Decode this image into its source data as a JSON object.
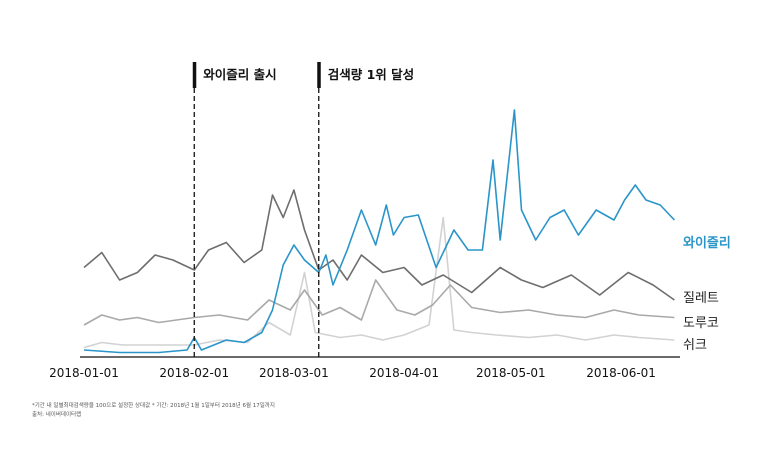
{
  "chart_data": {
    "type": "line",
    "x_axis": {
      "type": "date",
      "range": [
        "2018-01-01",
        "2018-06-17"
      ],
      "ticks": [
        "2018-01-01",
        "2018-02-01",
        "2018-03-01",
        "2018-04-01",
        "2018-05-01",
        "2018-06-01"
      ]
    },
    "y_axis": {
      "range": [
        0,
        100
      ],
      "visible": false
    },
    "grid": false,
    "annotations": [
      {
        "date": "2018-02-01",
        "label": "와이즐리 출시"
      },
      {
        "date": "2018-03-08",
        "label": "검색량 1위 달성"
      }
    ],
    "series": [
      {
        "name": "와이즐리",
        "color": "#2a95c9",
        "points": [
          [
            "2018-01-01",
            2
          ],
          [
            "2018-01-11",
            1
          ],
          [
            "2018-01-22",
            1
          ],
          [
            "2018-01-30",
            2
          ],
          [
            "2018-02-01",
            7
          ],
          [
            "2018-02-03",
            2
          ],
          [
            "2018-02-10",
            6
          ],
          [
            "2018-02-15",
            5
          ],
          [
            "2018-02-20",
            9
          ],
          [
            "2018-02-23",
            18
          ],
          [
            "2018-02-26",
            36
          ],
          [
            "2018-03-01",
            44
          ],
          [
            "2018-03-04",
            38
          ],
          [
            "2018-03-08",
            33
          ],
          [
            "2018-03-10",
            40
          ],
          [
            "2018-03-12",
            28
          ],
          [
            "2018-03-16",
            42
          ],
          [
            "2018-03-20",
            58
          ],
          [
            "2018-03-24",
            44
          ],
          [
            "2018-03-27",
            60
          ],
          [
            "2018-03-29",
            48
          ],
          [
            "2018-04-01",
            55
          ],
          [
            "2018-04-05",
            56
          ],
          [
            "2018-04-10",
            35
          ],
          [
            "2018-04-15",
            50
          ],
          [
            "2018-04-19",
            42
          ],
          [
            "2018-04-23",
            42
          ],
          [
            "2018-04-26",
            78
          ],
          [
            "2018-04-28",
            46
          ],
          [
            "2018-05-02",
            98
          ],
          [
            "2018-05-04",
            58
          ],
          [
            "2018-05-08",
            46
          ],
          [
            "2018-05-12",
            55
          ],
          [
            "2018-05-16",
            58
          ],
          [
            "2018-05-20",
            48
          ],
          [
            "2018-05-25",
            58
          ],
          [
            "2018-05-30",
            54
          ],
          [
            "2018-06-02",
            62
          ],
          [
            "2018-06-05",
            68
          ],
          [
            "2018-06-08",
            62
          ],
          [
            "2018-06-12",
            60
          ],
          [
            "2018-06-16",
            54
          ]
        ]
      },
      {
        "name": "질레트",
        "color": "#6e6e6e",
        "points": [
          [
            "2018-01-01",
            35
          ],
          [
            "2018-01-06",
            41
          ],
          [
            "2018-01-11",
            30
          ],
          [
            "2018-01-16",
            33
          ],
          [
            "2018-01-21",
            40
          ],
          [
            "2018-01-26",
            38
          ],
          [
            "2018-02-01",
            34
          ],
          [
            "2018-02-05",
            42
          ],
          [
            "2018-02-10",
            45
          ],
          [
            "2018-02-15",
            37
          ],
          [
            "2018-02-20",
            42
          ],
          [
            "2018-02-23",
            64
          ],
          [
            "2018-02-26",
            55
          ],
          [
            "2018-03-01",
            66
          ],
          [
            "2018-03-04",
            50
          ],
          [
            "2018-03-08",
            34
          ],
          [
            "2018-03-12",
            38
          ],
          [
            "2018-03-16",
            30
          ],
          [
            "2018-03-20",
            40
          ],
          [
            "2018-03-26",
            33
          ],
          [
            "2018-04-01",
            35
          ],
          [
            "2018-04-06",
            28
          ],
          [
            "2018-04-12",
            32
          ],
          [
            "2018-04-20",
            25
          ],
          [
            "2018-04-28",
            35
          ],
          [
            "2018-05-04",
            30
          ],
          [
            "2018-05-10",
            27
          ],
          [
            "2018-05-18",
            32
          ],
          [
            "2018-05-26",
            24
          ],
          [
            "2018-06-03",
            33
          ],
          [
            "2018-06-10",
            28
          ],
          [
            "2018-06-16",
            22
          ]
        ]
      },
      {
        "name": "도루코",
        "color": "#a9a9a9",
        "points": [
          [
            "2018-01-01",
            12
          ],
          [
            "2018-01-06",
            16
          ],
          [
            "2018-01-11",
            14
          ],
          [
            "2018-01-16",
            15
          ],
          [
            "2018-01-22",
            13
          ],
          [
            "2018-02-01",
            15
          ],
          [
            "2018-02-08",
            16
          ],
          [
            "2018-02-16",
            14
          ],
          [
            "2018-02-22",
            22
          ],
          [
            "2018-02-28",
            18
          ],
          [
            "2018-03-04",
            26
          ],
          [
            "2018-03-09",
            16
          ],
          [
            "2018-03-14",
            19
          ],
          [
            "2018-03-20",
            14
          ],
          [
            "2018-03-24",
            30
          ],
          [
            "2018-03-30",
            18
          ],
          [
            "2018-04-04",
            16
          ],
          [
            "2018-04-09",
            20
          ],
          [
            "2018-04-14",
            28
          ],
          [
            "2018-04-20",
            19
          ],
          [
            "2018-04-28",
            17
          ],
          [
            "2018-05-06",
            18
          ],
          [
            "2018-05-14",
            16
          ],
          [
            "2018-05-22",
            15
          ],
          [
            "2018-05-30",
            18
          ],
          [
            "2018-06-06",
            16
          ],
          [
            "2018-06-16",
            15
          ]
        ]
      },
      {
        "name": "쉬크",
        "color": "#d2d2d2",
        "points": [
          [
            "2018-01-01",
            3
          ],
          [
            "2018-01-06",
            5
          ],
          [
            "2018-01-12",
            4
          ],
          [
            "2018-01-20",
            4
          ],
          [
            "2018-02-01",
            4
          ],
          [
            "2018-02-08",
            6
          ],
          [
            "2018-02-16",
            5
          ],
          [
            "2018-02-22",
            13
          ],
          [
            "2018-02-28",
            8
          ],
          [
            "2018-03-04",
            33
          ],
          [
            "2018-03-07",
            9
          ],
          [
            "2018-03-14",
            7
          ],
          [
            "2018-03-20",
            8
          ],
          [
            "2018-03-26",
            6
          ],
          [
            "2018-04-01",
            8
          ],
          [
            "2018-04-08",
            12
          ],
          [
            "2018-04-12",
            55
          ],
          [
            "2018-04-15",
            10
          ],
          [
            "2018-04-20",
            9
          ],
          [
            "2018-04-27",
            8
          ],
          [
            "2018-05-06",
            7
          ],
          [
            "2018-05-14",
            8
          ],
          [
            "2018-05-22",
            6
          ],
          [
            "2018-05-30",
            8
          ],
          [
            "2018-06-06",
            7
          ],
          [
            "2018-06-16",
            6
          ]
        ]
      }
    ]
  },
  "footnotes": {
    "line1": "*기간 내 일별최대검색량을 100으로 설정한 상대값  * 기간: 2018년 1월 1일부터 2018년 6월 17일까지",
    "line2": "출처: 네이버데이터랩"
  }
}
